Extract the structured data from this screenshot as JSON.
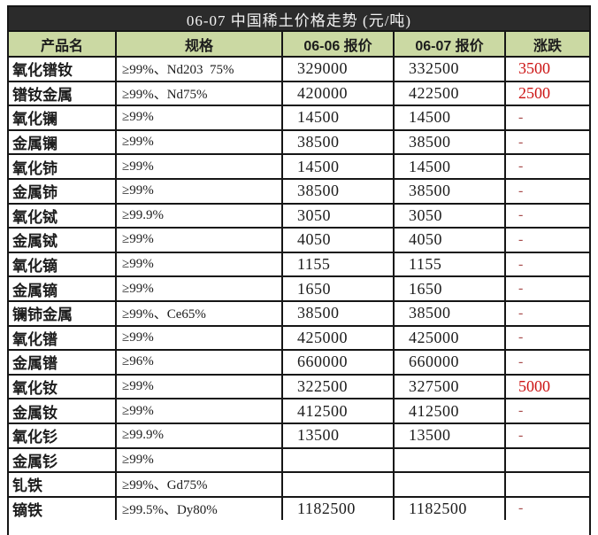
{
  "title": "06-07 中国稀土价格走势 (元/吨)",
  "header": {
    "columns": [
      "产品名",
      "规格",
      "06-06 报价",
      "06-07 报价",
      "涨跌"
    ]
  },
  "table": {
    "rows": [
      {
        "name": "氧化镨钕",
        "spec": "≥99%、Nd203  75%",
        "price_0606": "329000",
        "price_0607": "332500",
        "change": "3500"
      },
      {
        "name": "镨钕金属",
        "spec": "≥99%、Nd75%",
        "price_0606": "420000",
        "price_0607": "422500",
        "change": "2500"
      },
      {
        "name": "氧化镧",
        "spec": "≥99%",
        "price_0606": "14500",
        "price_0607": "14500",
        "change": "-"
      },
      {
        "name": "金属镧",
        "spec": "≥99%",
        "price_0606": "38500",
        "price_0607": "38500",
        "change": "-"
      },
      {
        "name": "氧化铈",
        "spec": "≥99%",
        "price_0606": "14500",
        "price_0607": "14500",
        "change": "-"
      },
      {
        "name": "金属铈",
        "spec": "≥99%",
        "price_0606": "38500",
        "price_0607": "38500",
        "change": "-"
      },
      {
        "name": "氧化铽",
        "spec": "≥99.9%",
        "price_0606": "3050",
        "price_0607": "3050",
        "change": "-"
      },
      {
        "name": "金属铽",
        "spec": "≥99%",
        "price_0606": "4050",
        "price_0607": "4050",
        "change": "-"
      },
      {
        "name": "氧化镝",
        "spec": "≥99%",
        "price_0606": "1155",
        "price_0607": "1155",
        "change": "-"
      },
      {
        "name": "金属镝",
        "spec": "≥99%",
        "price_0606": "1650",
        "price_0607": "1650",
        "change": "-"
      },
      {
        "name": "镧铈金属",
        "spec": "≥99%、Ce65%",
        "price_0606": "38500",
        "price_0607": "38500",
        "change": "-"
      },
      {
        "name": "氧化镨",
        "spec": "≥99%",
        "price_0606": "425000",
        "price_0607": "425000",
        "change": "-"
      },
      {
        "name": "金属镨",
        "spec": "≥96%",
        "price_0606": "660000",
        "price_0607": "660000",
        "change": "-"
      },
      {
        "name": "氧化钕",
        "spec": "≥99%",
        "price_0606": "322500",
        "price_0607": "327500",
        "change": "5000"
      },
      {
        "name": "金属钕",
        "spec": "≥99%",
        "price_0606": "412500",
        "price_0607": "412500",
        "change": "-"
      },
      {
        "name": "氧化钐",
        "spec": "≥99.9%",
        "price_0606": "13500",
        "price_0607": "13500",
        "change": "-"
      },
      {
        "name": "金属钐",
        "spec": "≥99%",
        "price_0606": "",
        "price_0607": "",
        "change": ""
      },
      {
        "name": "钆铁",
        "spec": "≥99%、Gd75%",
        "price_0606": "",
        "price_0607": "",
        "change": ""
      },
      {
        "name": "镝铁",
        "spec": "≥99.5%、Dy80%",
        "price_0606": "1182500",
        "price_0607": "1182500",
        "change": "-"
      }
    ]
  },
  "colors": {
    "title_bg": "#2b2b2b",
    "header_bg": "#cbd9a3",
    "change_red": "#cc1414",
    "dash_red": "#a84c4c",
    "border": "#161616"
  }
}
